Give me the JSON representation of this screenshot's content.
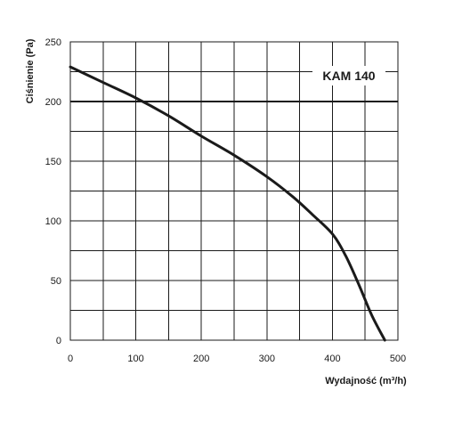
{
  "chart_data": {
    "type": "line",
    "title": "",
    "xlabel": "Wydajność (m³/h)",
    "ylabel": "Ciśnienie (Pa)",
    "xlim": [
      0,
      500
    ],
    "ylim": [
      0,
      250
    ],
    "xticks": [
      0,
      100,
      200,
      300,
      400,
      500
    ],
    "yticks": [
      0,
      50,
      100,
      150,
      200,
      250
    ],
    "x_grid_step": 50,
    "y_grid_step": 25,
    "grid": true,
    "reference_lines": [
      {
        "axis": "y",
        "value": 200
      }
    ],
    "series": [
      {
        "name": "KAM 140",
        "label_position": "top-right",
        "x": [
          0,
          50,
          100,
          150,
          200,
          250,
          300,
          340,
          370,
          400,
          420,
          440,
          460,
          480
        ],
        "y": [
          229,
          216,
          203,
          188,
          171,
          155,
          137,
          120,
          105,
          89,
          71,
          47,
          21,
          0
        ]
      }
    ]
  }
}
